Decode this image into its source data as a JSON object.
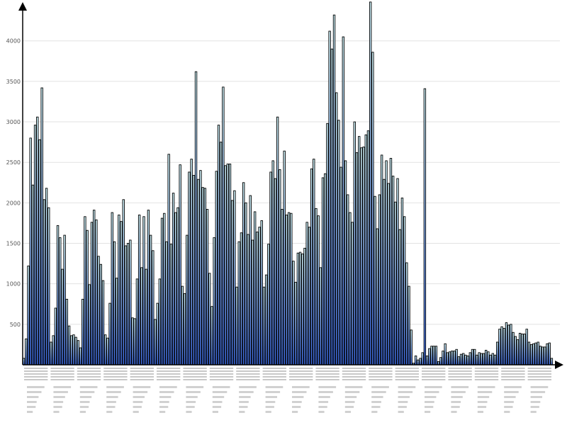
{
  "chart_data": {
    "type": "bar",
    "title": "",
    "xlabel": "",
    "ylabel": "",
    "ylim": [
      0,
      4400
    ],
    "yticks": [
      500,
      1000,
      1500,
      2000,
      2500,
      3000,
      3500,
      4000
    ],
    "grid": true,
    "legend": "none",
    "colors": {
      "bar_top": "#cdeff5",
      "bar_bottom": "#3a66d9",
      "bar_edge": "#000000",
      "grid": "#e2e2e2"
    },
    "series": [
      {
        "values": [
          80,
          320,
          1220,
          2800,
          2220,
          2960,
          3060,
          2780,
          3420,
          2040,
          2180,
          1940,
          280,
          360,
          700,
          1720,
          1570,
          1180,
          1600,
          810,
          480,
          360,
          370,
          340,
          300,
          210,
          810,
          1830,
          1660,
          990,
          1760,
          1910,
          1790,
          1340,
          1240,
          1040,
          370,
          330,
          760,
          1880,
          1520,
          1070,
          1850,
          1770,
          2040,
          1470,
          1500,
          1540,
          580,
          570,
          1060,
          1850,
          1200,
          1830,
          1180,
          1910,
          1600,
          1410,
          560,
          760,
          1060,
          1810,
          1870,
          1520,
          2600,
          1490,
          2120,
          1880,
          1940,
          2470,
          970,
          880,
          1600,
          2380,
          2540,
          2340,
          3620,
          2290,
          2400,
          2190,
          2180,
          1920,
          1130,
          720,
          1570,
          2390,
          2960,
          2750,
          3430,
          2460,
          2480,
          2480,
          2030,
          2150,
          960,
          1520,
          1630,
          2250,
          2000,
          1610,
          2090,
          1540,
          1890,
          1640,
          1700,
          1780,
          960,
          1110,
          1490,
          2380,
          2520,
          2300,
          3060,
          2410,
          1920,
          2640,
          1850,
          1880,
          1870,
          1280,
          1020,
          1380,
          1390,
          1370,
          1440,
          1760,
          1700,
          2420,
          2540,
          1930,
          1840,
          1200,
          2310,
          2360,
          2980,
          4120,
          3900,
          4320,
          3360,
          3020,
          2440,
          4050,
          2520,
          2100,
          1880,
          1760,
          3000,
          2620,
          2820,
          2680,
          2690,
          2840,
          2890,
          4480,
          3860,
          2080,
          1680,
          2100,
          2590,
          2290,
          2520,
          2240,
          2550,
          2330,
          2010,
          2300,
          1670,
          2060,
          1830,
          1260,
          970,
          430,
          20,
          110,
          60,
          80,
          150,
          3410,
          110,
          200,
          230,
          230,
          230,
          40,
          90,
          170,
          260,
          150,
          160,
          170,
          170,
          190,
          100,
          130,
          140,
          120,
          110,
          150,
          190,
          190,
          120,
          150,
          140,
          140,
          180,
          160,
          120,
          140,
          120,
          280,
          440,
          470,
          450,
          520,
          490,
          500,
          400,
          350,
          310,
          390,
          380,
          380,
          440,
          280,
          250,
          260,
          270,
          280,
          230,
          220,
          220,
          260,
          270,
          80
        ]
      }
    ]
  }
}
